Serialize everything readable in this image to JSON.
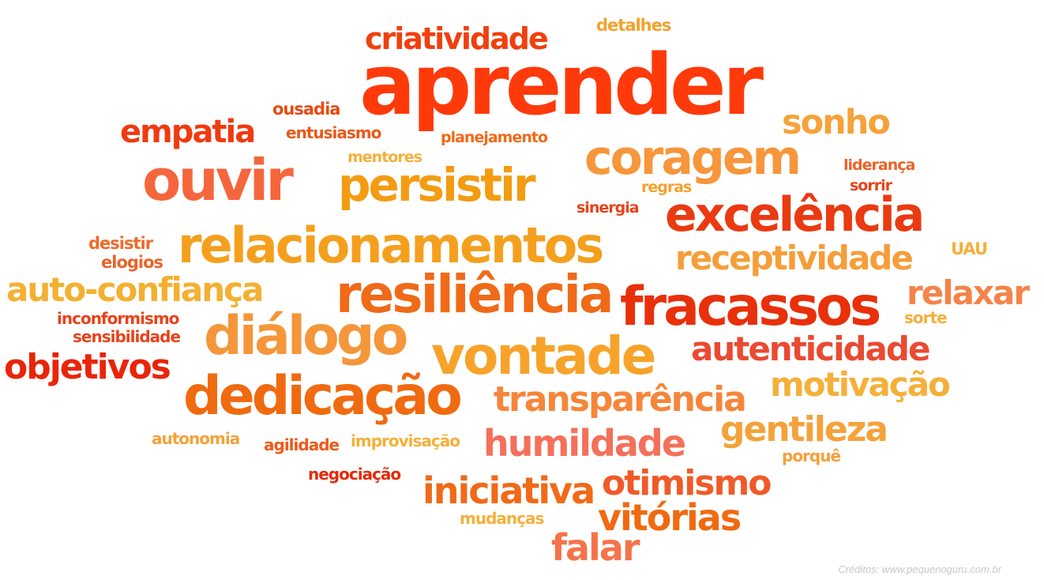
{
  "words": [
    {
      "id": "aprender",
      "text": "aprender",
      "color": "#ff3a0a"
    },
    {
      "id": "criatividade",
      "text": "criatividade",
      "color": "#f0400e"
    },
    {
      "id": "detalhes",
      "text": "detalhes",
      "color": "#f2a22d"
    },
    {
      "id": "ousadia",
      "text": "ousadia",
      "color": "#e84a12"
    },
    {
      "id": "empatia",
      "text": "empatia",
      "color": "#f03a10"
    },
    {
      "id": "entusiasmo",
      "text": "entusiasmo",
      "color": "#e85a18"
    },
    {
      "id": "planejamento",
      "text": "planejamento",
      "color": "#f06a18"
    },
    {
      "id": "sonho",
      "text": "sonho",
      "color": "#f6a23a"
    },
    {
      "id": "mentores",
      "text": "mentores",
      "color": "#f4b03a"
    },
    {
      "id": "coragem",
      "text": "coragem",
      "color": "#f7963a"
    },
    {
      "id": "ouvir",
      "text": "ouvir",
      "color": "#f5663d"
    },
    {
      "id": "persistir",
      "text": "persistir",
      "color": "#f39c12"
    },
    {
      "id": "lideranca",
      "text": "liderança",
      "color": "#e9642a"
    },
    {
      "id": "regras",
      "text": "regras",
      "color": "#f2a22d"
    },
    {
      "id": "sorrir",
      "text": "sorrir",
      "color": "#e8431a"
    },
    {
      "id": "sinergia",
      "text": "sinergia",
      "color": "#e8431a"
    },
    {
      "id": "excelencia",
      "text": "excelência",
      "color": "#ea3a12"
    },
    {
      "id": "desistir",
      "text": "desistir",
      "color": "#ee6b2a"
    },
    {
      "id": "elogios",
      "text": "elogios",
      "color": "#e9642a"
    },
    {
      "id": "relacionamentos",
      "text": "relacionamentos",
      "color": "#f4a01e"
    },
    {
      "id": "receptividade",
      "text": "receptividade",
      "color": "#f59e3a"
    },
    {
      "id": "uau",
      "text": "UAU",
      "color": "#f4b03a"
    },
    {
      "id": "auto-confianca",
      "text": "auto-confiança",
      "color": "#f4b030"
    },
    {
      "id": "resiliencia",
      "text": "resiliência",
      "color": "#f06a18"
    },
    {
      "id": "fracassos",
      "text": "fracassos",
      "color": "#e8300a"
    },
    {
      "id": "relaxar",
      "text": "relaxar",
      "color": "#f5834a"
    },
    {
      "id": "inconformismo",
      "text": "inconformismo",
      "color": "#e8431a"
    },
    {
      "id": "sorte",
      "text": "sorte",
      "color": "#f4b03a"
    },
    {
      "id": "sensibilidade",
      "text": "sensibilidade",
      "color": "#e8431a"
    },
    {
      "id": "dialogo",
      "text": "diálogo",
      "color": "#f5963a"
    },
    {
      "id": "vontade",
      "text": "vontade",
      "color": "#f7a32a"
    },
    {
      "id": "autenticidade",
      "text": "autenticidade",
      "color": "#ea4a32"
    },
    {
      "id": "objetivos",
      "text": "objetivos",
      "color": "#e8250a"
    },
    {
      "id": "motivacao",
      "text": "motivação",
      "color": "#f4b03a"
    },
    {
      "id": "dedicacao",
      "text": "dedicação",
      "color": "#f06a10"
    },
    {
      "id": "transparencia",
      "text": "transparência",
      "color": "#f5863a"
    },
    {
      "id": "gentileza",
      "text": "gentileza",
      "color": "#f4a23a"
    },
    {
      "id": "autonomia",
      "text": "autonomia",
      "color": "#f4a23a"
    },
    {
      "id": "agilidade",
      "text": "agilidade",
      "color": "#ee5a1a"
    },
    {
      "id": "improvisacao",
      "text": "improvisação",
      "color": "#f4b03a"
    },
    {
      "id": "humildade",
      "text": "humildade",
      "color": "#f4705a"
    },
    {
      "id": "porque",
      "text": "porquê",
      "color": "#f4a03a"
    },
    {
      "id": "negociacao",
      "text": "negociação",
      "color": "#e62a0a"
    },
    {
      "id": "iniciativa",
      "text": "iniciativa",
      "color": "#f06a18"
    },
    {
      "id": "otimismo",
      "text": "otimismo",
      "color": "#f05a28"
    },
    {
      "id": "mudancas",
      "text": "mudanças",
      "color": "#f4b03a"
    },
    {
      "id": "vitorias",
      "text": "vitórias",
      "color": "#f06a10"
    },
    {
      "id": "falar",
      "text": "falar",
      "color": "#f5734a"
    }
  ],
  "credits": "Créditos: www.pequenoguru.com.br"
}
